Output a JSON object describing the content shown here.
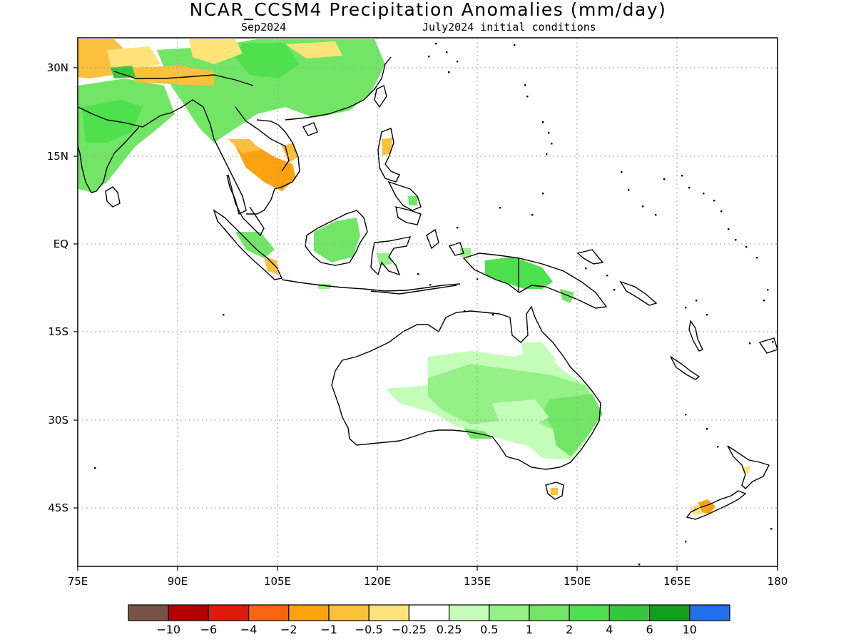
{
  "title": "NCAR_CCSM4 Precipitation Anomalies (mm/day)",
  "subtitle_left": "Sep2024",
  "subtitle_right": "July2024 initial conditions",
  "lat_labels": [
    "30N",
    "15N",
    "EQ",
    "15S",
    "30S",
    "45S"
  ],
  "lon_labels": [
    "75E",
    "90E",
    "105E",
    "120E",
    "135E",
    "150E",
    "165E",
    "180"
  ],
  "colorbar": {
    "colors": [
      "#7a5245",
      "#b50000",
      "#de1a0a",
      "#fa6411",
      "#fca20f",
      "#fdc03c",
      "#fee37b",
      "#ffffff",
      "#c3fdb8",
      "#93f185",
      "#72e567",
      "#4fe04d",
      "#36c73b",
      "#10a01a",
      "#2070ec"
    ],
    "labels": [
      "−10",
      "−6",
      "−4",
      "−2",
      "−1",
      "−0.5",
      "−0.25",
      "0.25",
      "0.5",
      "1",
      "2",
      "4",
      "6",
      "10"
    ]
  },
  "legend_colors": {
    "wet_light": "#c3fdb8",
    "wet_mid": "#93f185",
    "wet": "#72e567",
    "wet_strong": "#4fe04d",
    "wet_very": "#36c73b",
    "dry_light": "#fee37b",
    "dry": "#fdc03c",
    "dry_mid": "#fca20f",
    "dry_strong": "#fa6411"
  }
}
